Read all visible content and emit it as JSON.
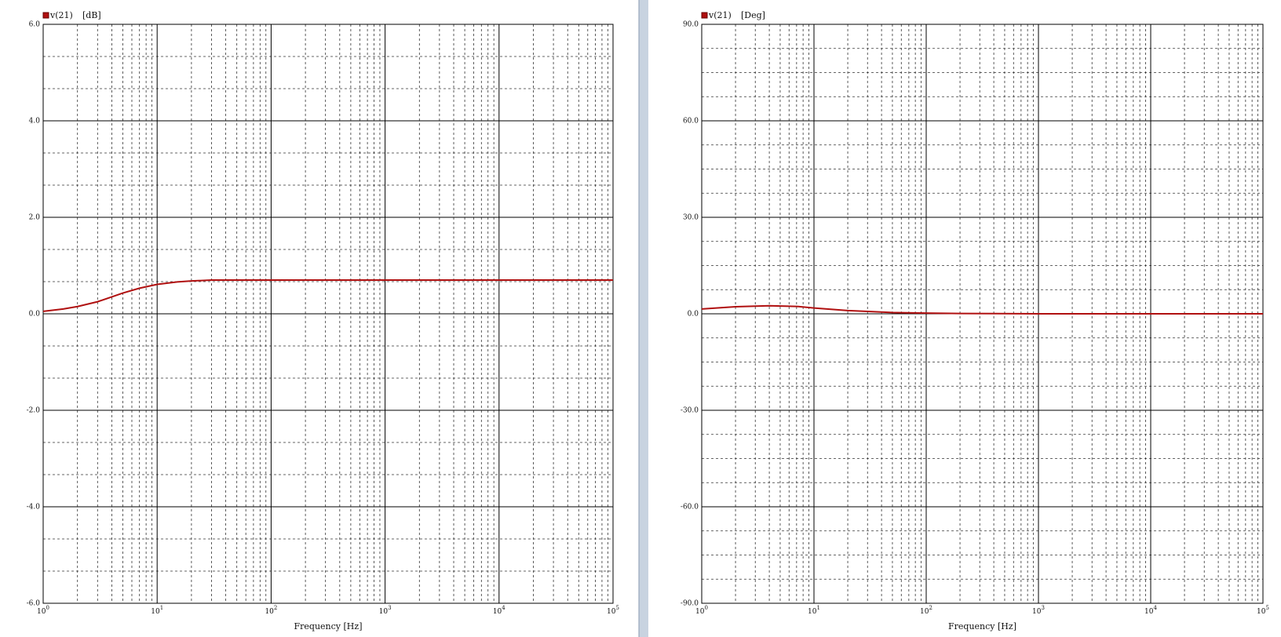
{
  "chart_data": [
    {
      "type": "line",
      "y_unit": "[dB]",
      "x_label": "Frequency [Hz]",
      "xscale": "log",
      "grid": true,
      "minor_grid_divisions": 2,
      "xlim": [
        1,
        100000
      ],
      "xticks": [
        {
          "value": 1,
          "label": "10",
          "exp": "0"
        },
        {
          "value": 10,
          "label": "10",
          "exp": "1"
        },
        {
          "value": 100,
          "label": "10",
          "exp": "2"
        },
        {
          "value": 1000,
          "label": "10",
          "exp": "3"
        },
        {
          "value": 10000,
          "label": "10",
          "exp": "4"
        },
        {
          "value": 100000,
          "label": "10",
          "exp": "5"
        }
      ],
      "ylim": [
        -6,
        6
      ],
      "yticks": [
        {
          "value": -6,
          "label": "-6.0"
        },
        {
          "value": -4,
          "label": "-4.0"
        },
        {
          "value": -2,
          "label": "-2.0"
        },
        {
          "value": 0,
          "label": "0.0"
        },
        {
          "value": 2,
          "label": "2.0"
        },
        {
          "value": 4,
          "label": "4.0"
        },
        {
          "value": 6,
          "label": "6.0"
        }
      ],
      "x": [
        1,
        1.5,
        2,
        3,
        4,
        5,
        7,
        10,
        15,
        20,
        30,
        100,
        1000,
        10000,
        100000
      ],
      "series": [
        {
          "name": "v(21)",
          "color": "#b01010",
          "values": [
            0.05,
            0.1,
            0.15,
            0.25,
            0.35,
            0.43,
            0.53,
            0.61,
            0.66,
            0.68,
            0.7,
            0.7,
            0.7,
            0.7,
            0.7
          ]
        }
      ]
    },
    {
      "type": "line",
      "y_unit": "[Deg]",
      "x_label": "Frequency [Hz]",
      "xscale": "log",
      "grid": true,
      "minor_grid_divisions": 3,
      "xlim": [
        1,
        100000
      ],
      "xticks": [
        {
          "value": 1,
          "label": "10",
          "exp": "0"
        },
        {
          "value": 10,
          "label": "10",
          "exp": "1"
        },
        {
          "value": 100,
          "label": "10",
          "exp": "2"
        },
        {
          "value": 1000,
          "label": "10",
          "exp": "3"
        },
        {
          "value": 10000,
          "label": "10",
          "exp": "4"
        },
        {
          "value": 100000,
          "label": "10",
          "exp": "5"
        }
      ],
      "ylim": [
        -90,
        90
      ],
      "yticks": [
        {
          "value": -90,
          "label": "-90.0"
        },
        {
          "value": -60,
          "label": "-60.0"
        },
        {
          "value": -30,
          "label": "-30.0"
        },
        {
          "value": 0,
          "label": "0.0"
        },
        {
          "value": 30,
          "label": "30.0"
        },
        {
          "value": 60,
          "label": "60.0"
        },
        {
          "value": 90,
          "label": "90.0"
        }
      ],
      "x": [
        1,
        2,
        4,
        7,
        10,
        20,
        50,
        100,
        200,
        1000,
        10000,
        100000
      ],
      "series": [
        {
          "name": "v(21)",
          "color": "#b01010",
          "values": [
            1.5,
            2.2,
            2.5,
            2.3,
            1.8,
            1.0,
            0.4,
            0.2,
            0.1,
            0,
            0,
            0
          ]
        }
      ]
    }
  ]
}
